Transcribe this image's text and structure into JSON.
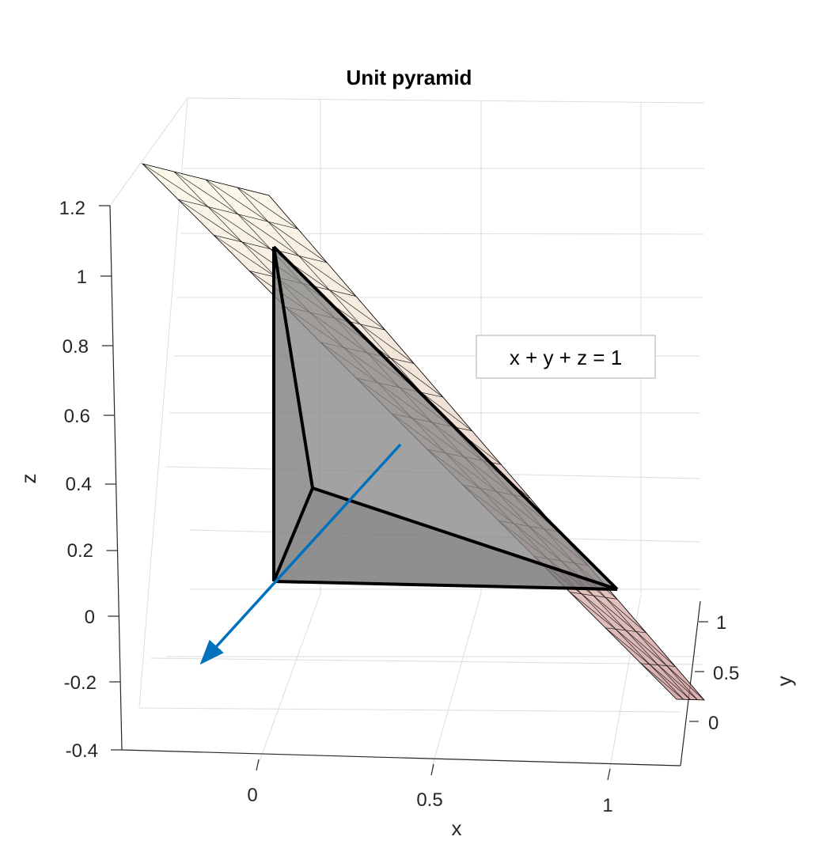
{
  "chart_data": {
    "type": "3d-surface",
    "title": "Unit pyramid",
    "xlabel": "x",
    "ylabel": "y",
    "zlabel": "z",
    "xticks": [
      "0",
      "0.5",
      "1"
    ],
    "yticks": [
      "0",
      "0.5",
      "1"
    ],
    "zticks": [
      "-0.4",
      "-0.2",
      "0",
      "0.2",
      "0.4",
      "0.6",
      "0.8",
      "1",
      "1.2"
    ],
    "xlim": [
      -0.1,
      1.1
    ],
    "ylim": [
      -0.2,
      1.2
    ],
    "zlim": [
      -0.4,
      1.2
    ],
    "grid": true,
    "surface": {
      "equation": "x + y + z = 1",
      "x_range": [
        -0.1,
        1.1
      ],
      "y_range": [
        -0.2,
        1.2
      ],
      "mesh_divisions": 15,
      "colormap": "pink",
      "face_alpha": 0.5
    },
    "pyramid_vertices": [
      [
        0,
        0,
        0
      ],
      [
        1,
        0,
        0
      ],
      [
        0,
        1,
        0
      ],
      [
        0,
        0,
        1
      ]
    ],
    "normal_vector": {
      "from": [
        0,
        0,
        0
      ],
      "to": [
        0.333,
        0.333,
        0.333
      ]
    },
    "annotation": "x + y + z = 1",
    "colors": {
      "normal": "#0072BD",
      "pyramid_fill": "#808080",
      "edges": "#000000",
      "grid": "#dcdcdc"
    }
  }
}
